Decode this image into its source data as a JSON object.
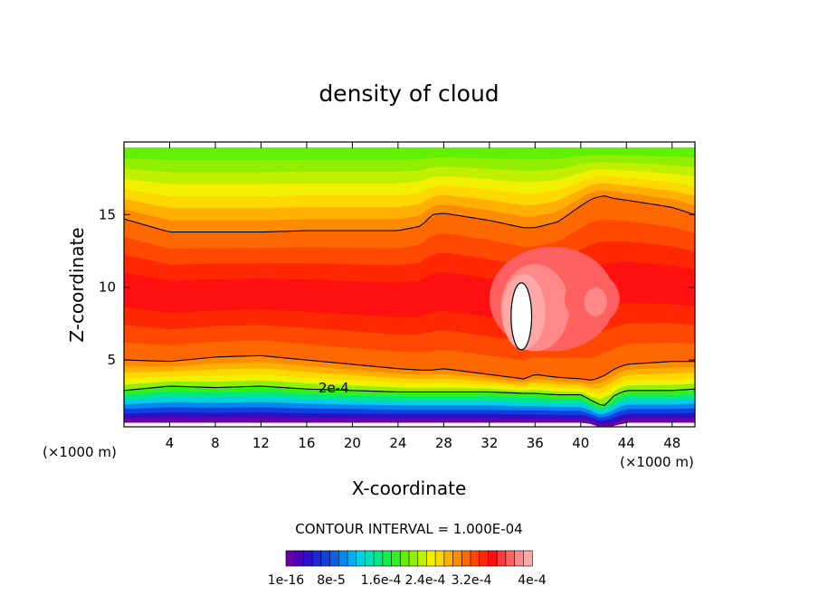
{
  "chart_data": {
    "type": "heatmap",
    "title": "density of cloud",
    "xlabel": "X-coordinate",
    "ylabel": "Z-coordinate",
    "x_unit": "(×1000 m)",
    "y_unit": "(×1000 m)",
    "xlim": [
      0,
      50
    ],
    "ylim": [
      0.4,
      20
    ],
    "x_ticks": [
      4,
      8,
      12,
      16,
      20,
      24,
      28,
      32,
      36,
      40,
      44,
      48
    ],
    "y_ticks": [
      5,
      10,
      15
    ],
    "contour_interval_text": "CONTOUR INTERVAL = 1.000E-04",
    "contour_label": "2e-4",
    "colorbar": {
      "colors": [
        "#6b00a8",
        "#4b00b8",
        "#2c10c8",
        "#1a28d8",
        "#1040e0",
        "#0a60e8",
        "#0088f0",
        "#00b0f0",
        "#00d0e0",
        "#00e0b8",
        "#00e888",
        "#10ee50",
        "#30f020",
        "#60f000",
        "#90f000",
        "#c0f000",
        "#f0f000",
        "#ffd800",
        "#ffb000",
        "#ff8c00",
        "#ff6800",
        "#ff4800",
        "#ff2800",
        "#ff1010",
        "#ff3838",
        "#ff6060",
        "#ff8888",
        "#ffa8a8"
      ],
      "tick_labels": [
        "1e-16",
        "8e-5",
        "1.6e-4",
        "2.4e-4",
        "3.2e-4",
        "4e-4"
      ]
    },
    "profile": {
      "x": [
        0,
        4,
        8,
        12,
        16,
        20,
        24,
        26,
        27,
        28,
        32,
        35,
        36,
        38,
        40,
        41,
        42,
        43,
        44,
        48,
        50
      ],
      "base_alt": [
        0.7,
        0.7,
        0.7,
        0.7,
        0.7,
        0.7,
        0.7,
        0.7,
        0.7,
        0.7,
        0.7,
        0.7,
        0.7,
        0.7,
        0.7,
        0.6,
        0.3,
        0.5,
        0.7,
        0.7,
        0.7
      ],
      "level_2e4": [
        2.9,
        3.2,
        3.1,
        3.2,
        3.0,
        2.9,
        2.8,
        2.8,
        2.8,
        2.8,
        2.8,
        2.7,
        2.7,
        2.6,
        2.6,
        2.2,
        1.8,
        2.6,
        2.9,
        2.9,
        3.0
      ],
      "level_3e4": [
        5.0,
        4.9,
        5.2,
        5.3,
        5.0,
        4.7,
        4.4,
        4.3,
        4.3,
        4.4,
        4.0,
        3.7,
        4.0,
        3.8,
        3.7,
        3.6,
        3.9,
        4.4,
        4.7,
        4.9,
        4.9
      ],
      "level_2e4_top": [
        14.7,
        13.8,
        13.8,
        13.8,
        13.9,
        13.9,
        13.9,
        14.2,
        15.0,
        15.1,
        14.6,
        14.1,
        14.1,
        14.5,
        15.6,
        16.1,
        16.3,
        16.1,
        16.0,
        15.5,
        15.0
      ],
      "cloud_top": [
        19.6,
        19.6,
        19.6,
        19.6,
        19.6,
        19.6,
        19.6,
        19.6,
        19.6,
        19.6,
        19.6,
        19.6,
        19.6,
        19.6,
        19.6,
        19.6,
        19.6,
        19.6,
        19.6,
        19.6,
        19.6
      ]
    }
  }
}
